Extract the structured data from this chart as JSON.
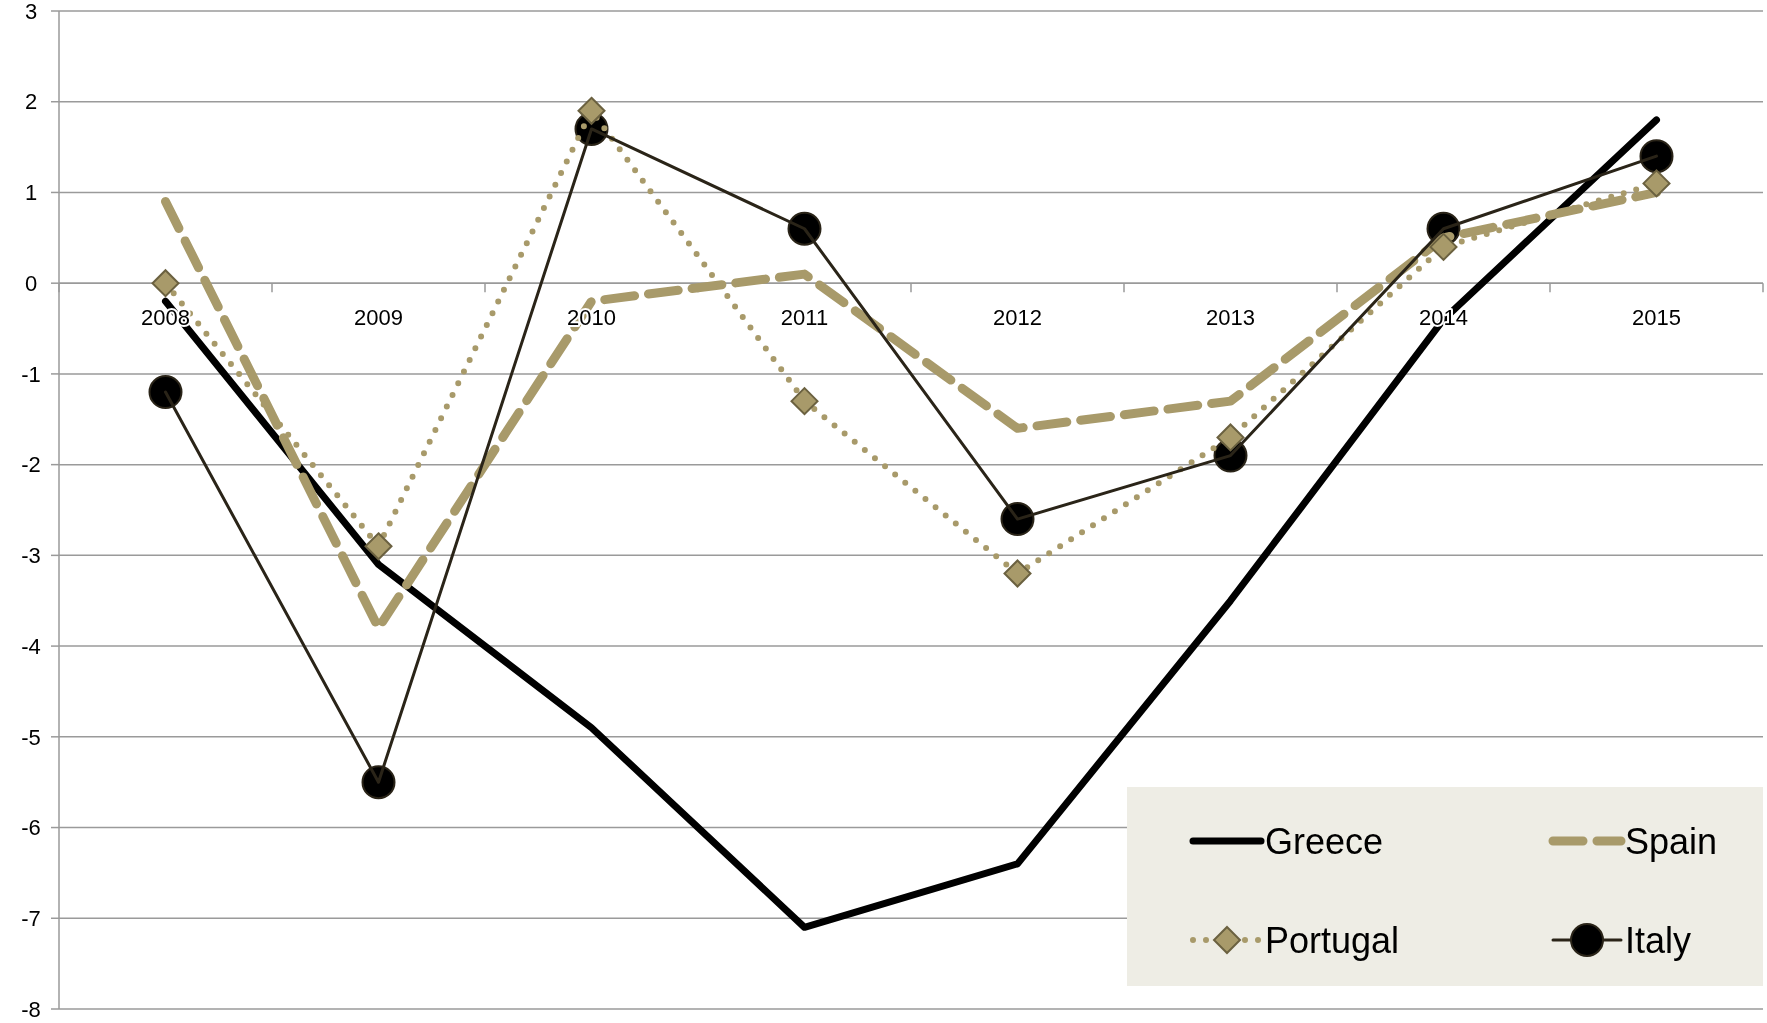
{
  "chart_data": {
    "type": "line",
    "categories": [
      "2008",
      "2009",
      "2010",
      "2011",
      "2012",
      "2013",
      "2014",
      "2015"
    ],
    "ylim": [
      -8,
      3
    ],
    "yticks": [
      -8,
      -7,
      -6,
      -5,
      -4,
      -3,
      -2,
      -1,
      0,
      1,
      2,
      3
    ],
    "grid": "y",
    "legend": "bottom right",
    "series": [
      {
        "name": "Greece",
        "color": "#000000",
        "line_style": "solid",
        "marker": "none",
        "values": [
          -0.2,
          -3.1,
          -4.9,
          -7.1,
          -6.4,
          -3.5,
          -0.4,
          1.8
        ]
      },
      {
        "name": "Spain",
        "color": "#a89a6a",
        "line_style": "dashed",
        "marker": "none",
        "values": [
          0.9,
          -3.8,
          -0.2,
          0.1,
          -1.6,
          -1.3,
          0.5,
          1.0
        ]
      },
      {
        "name": "Portugal",
        "color": "#a89a6a",
        "line_style": "dotted",
        "marker": "diamond",
        "values": [
          0.0,
          -2.9,
          1.9,
          -1.3,
          -3.2,
          -1.7,
          0.4,
          1.1
        ]
      },
      {
        "name": "Italy",
        "color": "#2a2418",
        "line_style": "solid",
        "marker": "circle",
        "values": [
          -1.2,
          -5.5,
          1.7,
          0.6,
          -2.6,
          -1.9,
          0.6,
          1.4
        ]
      }
    ]
  }
}
